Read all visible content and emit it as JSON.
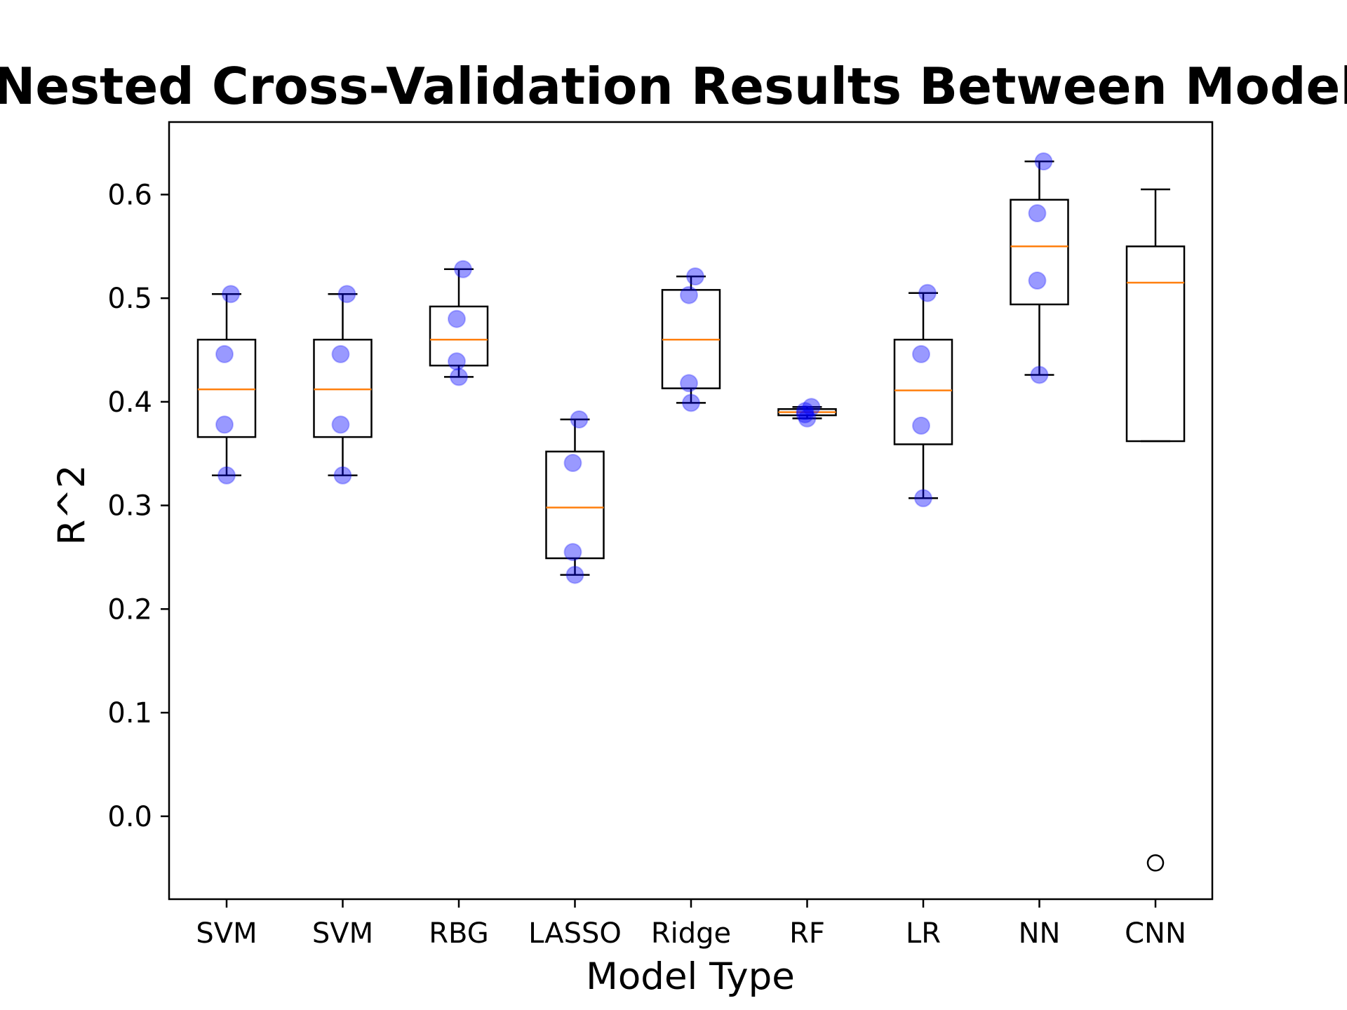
{
  "chart_data": {
    "type": "box",
    "title": "Nested Cross-Validation Results Between Models",
    "xlabel": "Model Type",
    "ylabel": "R^2",
    "ylim": [
      -0.08,
      0.67
    ],
    "yticks": [
      0.0,
      0.1,
      0.2,
      0.3,
      0.4,
      0.5,
      0.6
    ],
    "ytick_labels": [
      "0.0",
      "0.1",
      "0.2",
      "0.3",
      "0.4",
      "0.5",
      "0.6"
    ],
    "categories": [
      "SVM",
      "SVM",
      "RBG",
      "LASSO",
      "Ridge",
      "RF",
      "LR",
      "NN",
      "CNN"
    ],
    "grid": false,
    "legend": "none",
    "colors": {
      "median": "#ff7f0e",
      "box": "#000000",
      "points": "#0000ff"
    },
    "boxes": [
      {
        "label": "SVM",
        "whisker_low": 0.329,
        "q1": 0.366,
        "median": 0.412,
        "q3": 0.46,
        "whisker_high": 0.504,
        "outliers": [],
        "points": [
          0.504,
          0.446,
          0.378,
          0.329
        ]
      },
      {
        "label": "SVM",
        "whisker_low": 0.329,
        "q1": 0.366,
        "median": 0.412,
        "q3": 0.46,
        "whisker_high": 0.504,
        "outliers": [],
        "points": [
          0.504,
          0.446,
          0.378,
          0.329
        ]
      },
      {
        "label": "RBG",
        "whisker_low": 0.424,
        "q1": 0.435,
        "median": 0.46,
        "q3": 0.492,
        "whisker_high": 0.528,
        "outliers": [],
        "points": [
          0.528,
          0.48,
          0.439,
          0.424
        ]
      },
      {
        "label": "LASSO",
        "whisker_low": 0.233,
        "q1": 0.249,
        "median": 0.298,
        "q3": 0.352,
        "whisker_high": 0.383,
        "outliers": [],
        "points": [
          0.383,
          0.341,
          0.255,
          0.233
        ]
      },
      {
        "label": "Ridge",
        "whisker_low": 0.399,
        "q1": 0.413,
        "median": 0.46,
        "q3": 0.508,
        "whisker_high": 0.521,
        "outliers": [],
        "points": [
          0.521,
          0.503,
          0.418,
          0.399
        ]
      },
      {
        "label": "RF",
        "whisker_low": 0.384,
        "q1": 0.387,
        "median": 0.39,
        "q3": 0.393,
        "whisker_high": 0.395,
        "outliers": [],
        "points": [
          0.395,
          0.391,
          0.388,
          0.384
        ]
      },
      {
        "label": "LR",
        "whisker_low": 0.307,
        "q1": 0.359,
        "median": 0.411,
        "q3": 0.46,
        "whisker_high": 0.505,
        "outliers": [],
        "points": [
          0.505,
          0.446,
          0.377,
          0.307
        ]
      },
      {
        "label": "NN",
        "whisker_low": 0.426,
        "q1": 0.494,
        "median": 0.55,
        "q3": 0.595,
        "whisker_high": 0.632,
        "outliers": [],
        "points": [
          0.632,
          0.582,
          0.517,
          0.426
        ]
      },
      {
        "label": "CNN",
        "whisker_low": 0.362,
        "q1": 0.362,
        "median": 0.515,
        "q3": 0.55,
        "whisker_high": 0.605,
        "outliers": [
          -0.045
        ],
        "points": []
      }
    ]
  }
}
